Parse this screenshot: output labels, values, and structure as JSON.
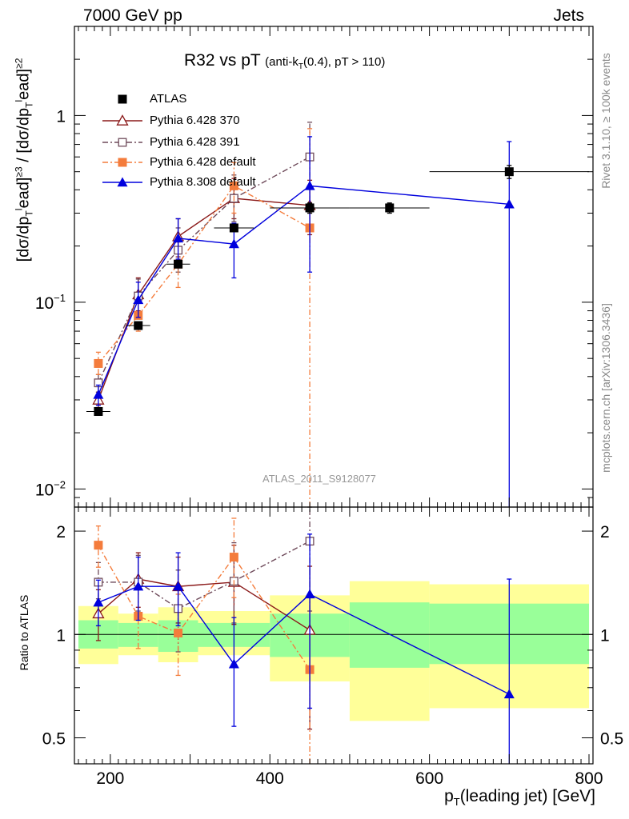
{
  "header": {
    "left": "7000 GeV pp",
    "right": "Jets"
  },
  "side_text": {
    "rivet": "Rivet 3.1.10, ≥ 100k events",
    "mcplots": "mcplots.cern.ch [arXiv:1306.3436]"
  },
  "chart_data": [
    {
      "type": "scatter",
      "panel": "main",
      "title": "R32 vs pT",
      "subtitle": "(anti-k_T(0.4), pT > 110)",
      "ylabel": "[dσ/dp_T^l ead]^{≥3} / [dσ/dp_T^l ead]^{≥2}",
      "ylabel_parts": {
        "open1": "[dσ/dp",
        "sub1": "T",
        "sup1": "l",
        "mid1": "ead]",
        "exp1": "≥3",
        "slash": " / [dσ/dp",
        "sub2": "T",
        "sup2": "l",
        "mid2": "ead]",
        "exp2": "≥2"
      },
      "yscale": "log",
      "ylim": [
        0.008,
        3.0
      ],
      "xlim": [
        155,
        805
      ],
      "ytick_labels": [
        {
          "base": "10",
          "exp": "−2",
          "value": 0.01
        },
        {
          "base": "10",
          "exp": "−1",
          "value": 0.1
        },
        {
          "base": "1",
          "exp": "",
          "value": 1
        }
      ],
      "watermark": "ATLAS_2011_S9128077",
      "legend_position": "top-left",
      "series": [
        {
          "name": "ATLAS",
          "color": "#000000",
          "marker": "square-filled",
          "line": "none",
          "x": [
            185,
            235,
            285,
            355,
            450,
            550,
            700
          ],
          "xerr": [
            15,
            15,
            15,
            25,
            50,
            50,
            100
          ],
          "y": [
            0.026,
            0.075,
            0.16,
            0.25,
            0.32,
            0.32,
            0.5
          ],
          "yerr_low": [
            0.001,
            0.003,
            0.005,
            0.01,
            0.02,
            0.02,
            0.04
          ],
          "yerr_high": [
            0.001,
            0.003,
            0.005,
            0.01,
            0.02,
            0.02,
            0.04
          ]
        },
        {
          "name": "Pythia 6.428 370",
          "color": "#8b1a1a",
          "marker": "triangle-open",
          "line": "solid",
          "x": [
            185,
            235,
            285,
            355,
            450
          ],
          "y": [
            0.03,
            0.11,
            0.225,
            0.36,
            0.33
          ],
          "yerr_low": [
            0.003,
            0.02,
            0.05,
            0.08,
            0.1
          ],
          "yerr_high": [
            0.003,
            0.025,
            0.055,
            0.1,
            0.12
          ]
        },
        {
          "name": "Pythia 6.428 391",
          "color": "#6e4a5a",
          "marker": "square-open",
          "line": "dashdot",
          "x": [
            185,
            235,
            285,
            355,
            450
          ],
          "y": [
            0.037,
            0.108,
            0.19,
            0.36,
            0.6
          ],
          "yerr_low": [
            0.004,
            0.02,
            0.045,
            0.09,
            0.3
          ],
          "yerr_high": [
            0.004,
            0.025,
            0.06,
            0.12,
            0.32
          ]
        },
        {
          "name": "Pythia 6.428 default",
          "color": "#f47c3c",
          "marker": "square-filled",
          "line": "dashdot",
          "x": [
            185,
            235,
            285,
            355,
            450
          ],
          "y": [
            0.047,
            0.085,
            0.16,
            0.42,
            0.25
          ],
          "yerr_low": [
            0.006,
            0.015,
            0.04,
            0.12,
            0.245
          ],
          "yerr_high": [
            0.007,
            0.018,
            0.05,
            0.14,
            0.6
          ]
        },
        {
          "name": "Pythia 8.308 default",
          "color": "#0000dd",
          "marker": "triangle-filled",
          "line": "solid",
          "x": [
            185,
            235,
            285,
            355,
            450,
            700
          ],
          "y": [
            0.032,
            0.103,
            0.22,
            0.205,
            0.42,
            0.335
          ],
          "yerr_low": [
            0.004,
            0.02,
            0.05,
            0.07,
            0.275,
            0.33
          ],
          "yerr_high": [
            0.004,
            0.025,
            0.06,
            0.06,
            0.35,
            0.39
          ]
        }
      ]
    },
    {
      "type": "scatter",
      "panel": "ratio",
      "ylabel": "Ratio to ATLAS",
      "xlabel": "p_T(leading jet) [GeV]",
      "xlabel_parts": {
        "p": "p",
        "sub": "T",
        "rest": "(leading jet) [GeV]"
      },
      "yscale": "log",
      "ylim": [
        0.42,
        2.35
      ],
      "xlim": [
        155,
        805
      ],
      "ytick_labels": [
        "0.5",
        "1",
        "2"
      ],
      "xtick_labels": [
        "200",
        "400",
        "600",
        "800"
      ],
      "reference_line": 1,
      "bands": [
        {
          "xlow": 160,
          "xhigh": 210,
          "inner": [
            0.91,
            1.1
          ],
          "outer": [
            0.82,
            1.21
          ]
        },
        {
          "xlow": 210,
          "xhigh": 260,
          "inner": [
            0.92,
            1.08
          ],
          "outer": [
            0.87,
            1.15
          ]
        },
        {
          "xlow": 260,
          "xhigh": 310,
          "inner": [
            0.89,
            1.1
          ],
          "outer": [
            0.83,
            1.2
          ]
        },
        {
          "xlow": 310,
          "xhigh": 400,
          "inner": [
            0.92,
            1.08
          ],
          "outer": [
            0.87,
            1.17
          ]
        },
        {
          "xlow": 400,
          "xhigh": 500,
          "inner": [
            0.86,
            1.15
          ],
          "outer": [
            0.73,
            1.3
          ]
        },
        {
          "xlow": 500,
          "xhigh": 600,
          "inner": [
            0.8,
            1.24
          ],
          "outer": [
            0.56,
            1.43
          ]
        },
        {
          "xlow": 600,
          "xhigh": 800,
          "inner": [
            0.82,
            1.23
          ],
          "outer": [
            0.61,
            1.4
          ]
        }
      ],
      "band_colors": {
        "inner": "#99ff99",
        "outer": "#ffff99"
      },
      "series": [
        {
          "name": "Pythia 6.428 370",
          "color": "#8b1a1a",
          "marker": "triangle-open",
          "line": "solid",
          "x": [
            185,
            235,
            285,
            355,
            450
          ],
          "y": [
            1.15,
            1.45,
            1.38,
            1.42,
            1.03
          ],
          "yerr_low": [
            0.19,
            0.25,
            0.3,
            0.35,
            0.5
          ],
          "yerr_high": [
            0.2,
            0.28,
            0.3,
            0.4,
            0.55
          ]
        },
        {
          "name": "Pythia 6.428 391",
          "color": "#6e4a5a",
          "marker": "square-open",
          "line": "dashdot",
          "x": [
            185,
            235,
            285,
            355,
            450
          ],
          "y": [
            1.42,
            1.42,
            1.19,
            1.43,
            1.87
          ],
          "yerr_low": [
            0.15,
            0.25,
            0.3,
            0.35,
            0.7
          ],
          "yerr_high": [
            0.2,
            0.28,
            0.35,
            0.42,
            0.6
          ]
        },
        {
          "name": "Pythia 6.428 default",
          "color": "#f47c3c",
          "marker": "square-filled",
          "line": "dashdot",
          "x": [
            185,
            235,
            285,
            355,
            450
          ],
          "y": [
            1.82,
            1.13,
            1.01,
            1.68,
            0.79
          ],
          "yerr_low": [
            0.25,
            0.22,
            0.25,
            0.4,
            0.39
          ],
          "yerr_high": [
            0.25,
            0.25,
            0.3,
            0.5,
            0.5
          ]
        },
        {
          "name": "Pythia 8.308 default",
          "color": "#0000dd",
          "marker": "triangle-filled",
          "line": "solid",
          "x": [
            185,
            235,
            285,
            355,
            450,
            700
          ],
          "y": [
            1.24,
            1.38,
            1.38,
            0.82,
            1.31,
            0.67
          ],
          "yerr_low": [
            0.18,
            0.28,
            0.32,
            0.28,
            0.7,
            0.3
          ],
          "yerr_high": [
            0.2,
            0.3,
            0.35,
            0.3,
            0.65,
            0.78
          ]
        }
      ]
    }
  ]
}
